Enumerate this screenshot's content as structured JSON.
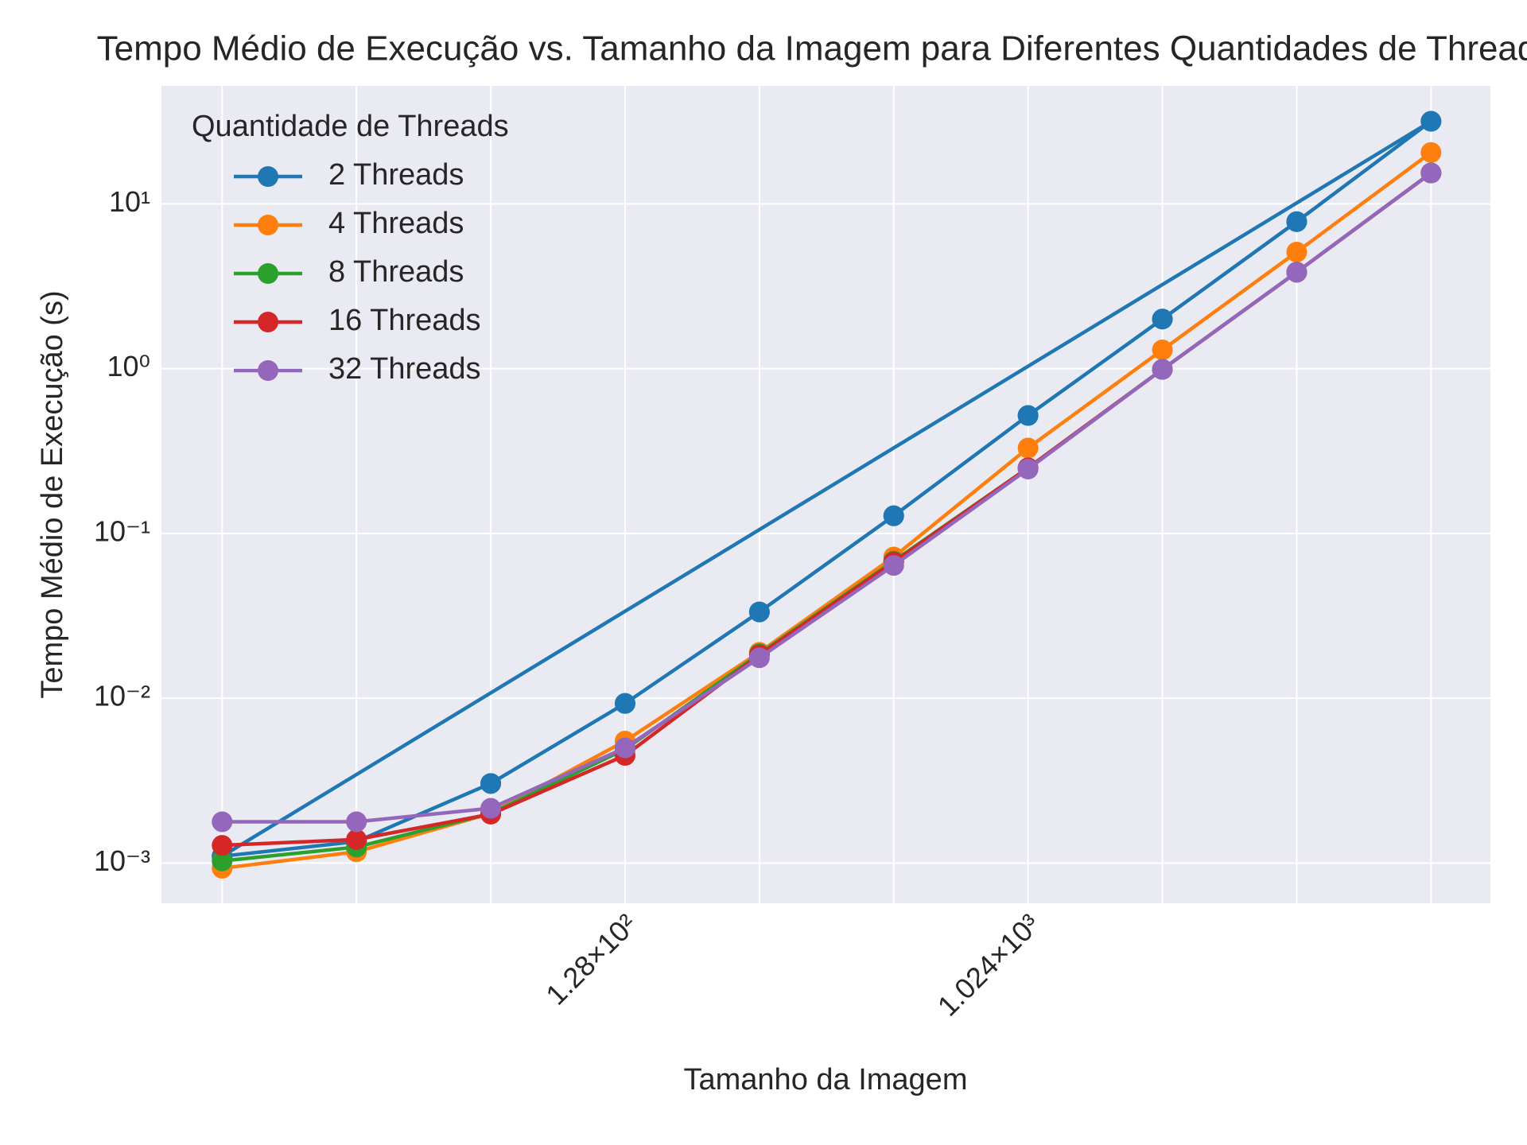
{
  "chart_data": {
    "type": "line",
    "title": "Tempo Médio de Execução vs. Tamanho da Imagem para Diferentes Quantidades de Threads",
    "xlabel": "Tamanho da Imagem",
    "ylabel": "Tempo Médio de Execução (s)",
    "x": [
      16,
      32,
      64,
      128,
      256,
      512,
      1024,
      2048,
      4096,
      8192
    ],
    "xscale": "log",
    "yscale": "log",
    "xlim": [
      11.7,
      11130
    ],
    "ylim": [
      0.00057,
      52
    ],
    "xticks": [
      {
        "value": 128,
        "label": "1.28×10²"
      },
      {
        "value": 1024,
        "label": "1.024×10³"
      }
    ],
    "xgrid": [
      16,
      32,
      64,
      128,
      256,
      512,
      1024,
      2048,
      4096,
      8192
    ],
    "yticks": [
      {
        "value": 0.001,
        "label": "10⁻³"
      },
      {
        "value": 0.01,
        "label": "10⁻²"
      },
      {
        "value": 0.1,
        "label": "10⁻¹"
      },
      {
        "value": 1,
        "label": "10⁰"
      },
      {
        "value": 10,
        "label": "10¹"
      }
    ],
    "grid": true,
    "legend_title": "Quantidade de Threads",
    "legend": "upper left",
    "series": [
      {
        "name": "2 Threads",
        "color": "#1f77b4",
        "x": [
          16,
          32,
          64,
          128,
          256,
          512,
          1024,
          2048,
          4096,
          8192,
          16,
          32,
          64,
          128,
          256,
          512,
          1024,
          2048,
          4096,
          8192
        ],
        "values": [
          0.0011,
          0.00135,
          0.00304,
          0.0093,
          0.0334,
          0.128,
          0.52,
          2.0,
          7.8,
          31.7,
          0.0011,
          0.00135,
          0.00304,
          0.0093,
          0.0334,
          0.128,
          0.52,
          2.0,
          7.8,
          31.7
        ]
      },
      {
        "name": "4 Threads",
        "color": "#ff7f0e",
        "values": [
          0.00093,
          0.00117,
          0.002,
          0.0055,
          0.019,
          0.072,
          0.33,
          1.3,
          5.1,
          20.5
        ]
      },
      {
        "name": "8 Threads",
        "color": "#2ca02c",
        "values": [
          0.00103,
          0.00125,
          0.002,
          0.0049,
          0.0186,
          0.068,
          0.25,
          0.99,
          3.85,
          15.4
        ]
      },
      {
        "name": "16 Threads",
        "color": "#d62728",
        "values": [
          0.00128,
          0.00139,
          0.00198,
          0.0045,
          0.0183,
          0.067,
          0.25,
          0.99,
          3.85,
          15.4
        ]
      },
      {
        "name": "32 Threads",
        "color": "#9467bd",
        "values": [
          0.00178,
          0.00178,
          0.00215,
          0.005,
          0.0176,
          0.064,
          0.246,
          0.99,
          3.85,
          15.4
        ]
      }
    ]
  }
}
